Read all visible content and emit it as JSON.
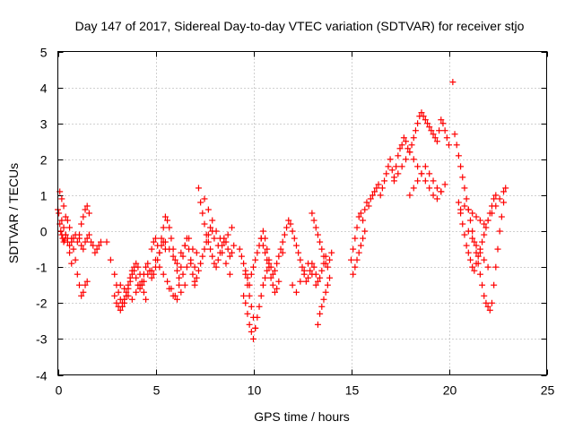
{
  "chart_data": {
    "type": "scatter",
    "title": "Day 147 of 2017, Sidereal Day-to-day VTEC variation (SDTVAR) for receiver stjo",
    "xlabel": "GPS time / hours",
    "ylabel": "SDTVAR / TECUs",
    "xlim": [
      0,
      25
    ],
    "ylim": [
      -4,
      5
    ],
    "x_ticks": [
      0,
      5,
      10,
      15,
      20,
      25
    ],
    "x_tick_labels": [
      "0",
      "5",
      "10",
      "15",
      "20",
      "25"
    ],
    "y_ticks": [
      -4,
      -3,
      -2,
      -1,
      0,
      1,
      2,
      3,
      4,
      5
    ],
    "y_tick_labels": [
      "-4",
      "-3",
      "-2",
      "-1",
      "0",
      "1",
      "2",
      "3",
      "4",
      "5"
    ],
    "grid": true,
    "marker": "+",
    "color": "#ff0000",
    "series": [
      {
        "name": "SDTVAR",
        "x": [
          0.0,
          0.05,
          0.1,
          0.15,
          0.2,
          0.25,
          0.3,
          0.35,
          0.4,
          0.5,
          0.6,
          0.7,
          0.8,
          0.9,
          1.0,
          1.1,
          1.2,
          1.3,
          1.4,
          1.5,
          1.6,
          1.7,
          1.8,
          1.9,
          2.0,
          2.1,
          2.2,
          2.5,
          2.7,
          0.1,
          0.2,
          0.3,
          0.4,
          0.5,
          0.6,
          0.7,
          0.8,
          0.9,
          1.0,
          1.1,
          1.2,
          1.3,
          1.4,
          1.5,
          0.2,
          0.3,
          0.4,
          0.5,
          0.6,
          0.7,
          1.1,
          1.2,
          1.3,
          1.4,
          1.5,
          1.6,
          2.9,
          3.0,
          3.1,
          3.2,
          3.3,
          3.4,
          3.5,
          3.6,
          3.7,
          3.8,
          3.9,
          4.0,
          4.1,
          4.2,
          4.3,
          4.4,
          4.5,
          4.6,
          4.7,
          4.8,
          4.9,
          5.0,
          5.1,
          5.2,
          5.3,
          5.4,
          5.5,
          2.9,
          3.0,
          3.1,
          3.2,
          3.3,
          3.4,
          3.5,
          3.6,
          3.7,
          3.8,
          3.9,
          4.0,
          4.1,
          4.2,
          4.3,
          4.4,
          4.5,
          3.2,
          3.4,
          3.6,
          3.8,
          4.0,
          4.2,
          4.4,
          4.6,
          4.8,
          4.8,
          4.9,
          5.0,
          5.1,
          5.2,
          5.3,
          5.4,
          5.5,
          5.6,
          5.7,
          5.8,
          5.9,
          6.0,
          6.1,
          6.2,
          6.3,
          6.4,
          6.5,
          6.6,
          6.7,
          6.8,
          6.9,
          7.0,
          5.0,
          5.2,
          5.4,
          5.6,
          5.8,
          6.0,
          6.2,
          6.4,
          6.6,
          6.8,
          5.5,
          5.7,
          5.9,
          6.1,
          6.3,
          6.5,
          6.7,
          6.9,
          5.7,
          5.9,
          6.1,
          6.3,
          6.5,
          7.0,
          7.1,
          7.2,
          7.3,
          7.4,
          7.5,
          7.6,
          7.7,
          7.8,
          7.9,
          8.0,
          8.1,
          8.2,
          8.3,
          8.4,
          8.5,
          8.6,
          8.7,
          8.8,
          8.9,
          9.0,
          7.0,
          7.1,
          7.2,
          7.3,
          7.4,
          7.5,
          7.6,
          7.7,
          7.8,
          7.9,
          8.0,
          8.2,
          8.4,
          8.6,
          8.8,
          7.5,
          7.7,
          7.9,
          8.1,
          8.3,
          8.5,
          8.7,
          8.9,
          9.3,
          9.4,
          9.5,
          9.6,
          9.7,
          9.8,
          9.9,
          10.0,
          10.1,
          10.2,
          10.3,
          10.4,
          10.5,
          10.6,
          10.7,
          10.8,
          10.9,
          11.0,
          11.1,
          11.2,
          11.3,
          11.4,
          11.5,
          9.5,
          9.6,
          9.7,
          9.8,
          9.9,
          10.0,
          10.1,
          10.2,
          10.3,
          10.4,
          10.5,
          10.6,
          10.7,
          10.8,
          9.6,
          9.7,
          9.8,
          9.9,
          10.0,
          10.1,
          10.4,
          10.5,
          10.6,
          10.7,
          10.8,
          10.9,
          11.0,
          11.1,
          11.2,
          11.3,
          11.5,
          11.6,
          11.7,
          11.8,
          11.9,
          12.0,
          12.1,
          12.2,
          12.3,
          12.4,
          12.5,
          12.6,
          12.7,
          12.8,
          12.9,
          13.0,
          13.1,
          13.2,
          13.3,
          13.4,
          13.5,
          13.6,
          13.7,
          12.0,
          12.2,
          12.4,
          12.6,
          12.8,
          13.0,
          13.2,
          13.0,
          13.1,
          13.2,
          13.3,
          13.4,
          13.5,
          13.6,
          13.7,
          13.8,
          13.9,
          14.0,
          13.3,
          13.4,
          13.5,
          13.6,
          13.7,
          13.8,
          13.9,
          15.0,
          15.1,
          15.2,
          15.3,
          15.4,
          15.5,
          15.6,
          15.7,
          15.8,
          15.9,
          16.0,
          16.1,
          16.2,
          16.3,
          16.4,
          16.5,
          16.6,
          16.7,
          16.8,
          16.9,
          17.0,
          17.1,
          17.2,
          17.3,
          17.4,
          17.5,
          17.6,
          17.7,
          17.8,
          17.9,
          18.0,
          18.1,
          18.2,
          18.3,
          18.4,
          18.5,
          18.6,
          18.7,
          18.8,
          18.9,
          19.0,
          19.1,
          19.2,
          19.3,
          19.4,
          19.5,
          19.6,
          19.7,
          19.8,
          19.9,
          20.0,
          15.1,
          15.2,
          15.3,
          15.4,
          15.5,
          15.6,
          15.7,
          17.2,
          17.4,
          17.6,
          17.8,
          18.0,
          18.2,
          18.4,
          18.6,
          18.8,
          19.0,
          19.2,
          19.4,
          19.6,
          19.8,
          18.0,
          18.2,
          18.4,
          18.6,
          18.8,
          19.0,
          19.2,
          19.4,
          19.6,
          20.2,
          20.3,
          20.4,
          20.5,
          20.6,
          20.7,
          20.8,
          20.9,
          21.0,
          21.1,
          21.2,
          21.3,
          21.4,
          21.5,
          21.6,
          21.7,
          21.8,
          21.9,
          22.0,
          22.1,
          22.2,
          22.3,
          22.4,
          22.5,
          22.6,
          22.7,
          22.8,
          22.9,
          20.5,
          20.6,
          20.7,
          20.8,
          20.9,
          21.0,
          21.1,
          21.2,
          21.3,
          21.4,
          21.5,
          21.6,
          21.7,
          21.8,
          21.9,
          22.0,
          22.1,
          22.2,
          22.3,
          22.4,
          20.6,
          20.8,
          21.0,
          21.2,
          21.4,
          21.6,
          21.8,
          22.0,
          22.2,
          22.4,
          22.6,
          22.8,
          21.0,
          21.2,
          21.4,
          21.6,
          21.8,
          22.0
        ],
        "y": [
          0.6,
          0.5,
          0.2,
          0.0,
          -0.1,
          -0.2,
          -0.3,
          -0.25,
          -0.1,
          -0.2,
          -0.4,
          -0.3,
          -0.2,
          -0.1,
          -0.3,
          -0.2,
          -0.4,
          -0.5,
          -0.3,
          -0.2,
          -0.1,
          -0.3,
          -0.4,
          -0.6,
          -0.5,
          -0.4,
          -0.3,
          -0.3,
          -0.8,
          1.1,
          0.9,
          0.7,
          0.4,
          0.3,
          0.1,
          -0.2,
          -0.5,
          -0.8,
          -1.2,
          -1.5,
          -1.8,
          -1.7,
          -1.5,
          -1.4,
          0.3,
          0.1,
          -0.1,
          -0.3,
          -0.6,
          -0.9,
          -0.1,
          0.2,
          0.4,
          0.6,
          0.7,
          0.5,
          -1.2,
          -1.5,
          -1.7,
          -1.9,
          -2.1,
          -2.0,
          -1.8,
          -1.6,
          -1.4,
          -1.2,
          -1.1,
          -1.3,
          -1.5,
          -1.6,
          -1.4,
          -1.2,
          -1.0,
          -0.9,
          -1.1,
          -1.3,
          -1.2,
          -1.0,
          -0.8,
          -0.6,
          -0.4,
          -0.3,
          -0.5,
          -1.8,
          -2.0,
          -2.1,
          -2.2,
          -2.0,
          -1.9,
          -1.7,
          -1.5,
          -1.3,
          -1.1,
          -1.0,
          -0.9,
          -1.0,
          -1.2,
          -1.5,
          -1.7,
          -1.9,
          -1.5,
          -1.6,
          -1.8,
          -1.9,
          -1.7,
          -1.5,
          -1.4,
          -1.2,
          -1.1,
          -0.5,
          -0.3,
          -0.2,
          -0.4,
          -0.6,
          -0.2,
          0.1,
          0.4,
          0.3,
          0.1,
          -0.2,
          -0.5,
          -0.8,
          -1.1,
          -1.3,
          -1.0,
          -0.7,
          -0.4,
          -0.2,
          -0.5,
          -0.9,
          -1.2,
          -1.4,
          -0.8,
          -1.0,
          -1.2,
          -1.4,
          -1.6,
          -1.8,
          -1.5,
          -1.2,
          -1.0,
          -0.8,
          -0.3,
          -0.5,
          -0.7,
          -0.9,
          -0.6,
          -0.4,
          -0.2,
          -0.5,
          -1.6,
          -1.8,
          -1.9,
          -1.7,
          -1.5,
          -1.0,
          -0.6,
          1.2,
          0.8,
          0.5,
          0.2,
          -0.1,
          -0.3,
          -0.5,
          -0.7,
          -0.9,
          -1.0,
          -0.8,
          -0.6,
          -0.4,
          -0.2,
          -0.3,
          -0.5,
          -0.7,
          -0.6,
          -0.4,
          -1.5,
          -1.3,
          -1.1,
          -0.9,
          -0.7,
          -0.5,
          -0.3,
          -0.1,
          0.1,
          0.0,
          -0.2,
          -0.4,
          -0.6,
          -0.9,
          -1.2,
          0.9,
          0.6,
          0.3,
          0.0,
          -0.2,
          -0.3,
          -0.1,
          0.1,
          -0.5,
          -0.7,
          -0.9,
          -1.1,
          -1.3,
          -1.5,
          -1.2,
          -1.0,
          -0.8,
          -0.6,
          -0.4,
          -0.2,
          0.0,
          -0.2,
          -0.5,
          -0.8,
          -1.0,
          -1.2,
          -1.1,
          -0.9,
          -0.7,
          -0.5,
          -0.6,
          -1.8,
          -2.0,
          -2.3,
          -2.6,
          -2.8,
          -3.0,
          -2.7,
          -2.4,
          -2.1,
          -1.8,
          -1.5,
          -1.3,
          -1.1,
          -0.9,
          -1.2,
          -1.5,
          -1.8,
          -2.1,
          -2.4,
          -2.7,
          -0.2,
          -0.4,
          -0.6,
          -0.8,
          -1.0,
          -1.3,
          -1.5,
          -1.7,
          -1.6,
          -1.4,
          -0.3,
          -0.1,
          0.1,
          0.3,
          0.2,
          0.0,
          -0.2,
          -0.4,
          -0.6,
          -0.8,
          -1.0,
          -1.2,
          -1.4,
          -1.3,
          -1.1,
          -0.9,
          -1.0,
          -1.2,
          -1.4,
          -1.3,
          -1.1,
          -0.9,
          -0.7,
          -1.5,
          -1.7,
          -1.4,
          -1.1,
          -0.9,
          -1.2,
          -1.5,
          0.5,
          0.3,
          0.1,
          -0.1,
          -0.3,
          -0.5,
          -0.7,
          -0.9,
          -1.0,
          -0.8,
          -0.6,
          -2.6,
          -2.3,
          -2.1,
          -1.9,
          -1.7,
          -1.5,
          -1.3,
          -0.8,
          -0.5,
          -0.2,
          0.1,
          0.4,
          0.5,
          0.3,
          0.6,
          0.8,
          0.7,
          0.9,
          1.0,
          1.1,
          1.2,
          1.3,
          1.0,
          1.2,
          1.4,
          1.6,
          1.8,
          2.0,
          1.7,
          1.5,
          1.8,
          2.1,
          2.3,
          2.4,
          2.6,
          2.5,
          2.3,
          2.2,
          2.4,
          2.6,
          2.8,
          3.0,
          3.2,
          3.3,
          3.2,
          3.1,
          3.0,
          2.9,
          2.8,
          2.7,
          2.6,
          2.5,
          2.8,
          3.1,
          3.0,
          2.8,
          2.6,
          2.4,
          -1.2,
          -1.0,
          -0.8,
          -0.6,
          -0.4,
          -0.2,
          0.0,
          1.4,
          1.6,
          1.8,
          2.0,
          2.2,
          2.0,
          1.8,
          1.6,
          1.4,
          1.2,
          1.0,
          0.9,
          1.1,
          1.3,
          1.0,
          1.2,
          1.4,
          1.6,
          1.8,
          1.6,
          1.4,
          1.2,
          1.1,
          4.15,
          2.7,
          2.4,
          2.1,
          1.8,
          1.5,
          1.2,
          0.9,
          0.6,
          0.3,
          0.0,
          -0.3,
          -0.6,
          -0.9,
          -1.2,
          -1.5,
          -1.8,
          -2.0,
          -2.1,
          -2.2,
          -2.0,
          -1.5,
          -1.0,
          -0.5,
          0.0,
          0.4,
          0.8,
          1.2,
          0.8,
          0.5,
          0.2,
          -0.1,
          -0.4,
          -0.6,
          -0.8,
          -1.0,
          -1.1,
          -0.9,
          -0.7,
          -0.5,
          -0.3,
          -0.1,
          0.1,
          0.3,
          0.5,
          0.7,
          0.9,
          1.0,
          0.6,
          0.7,
          0.6,
          0.5,
          0.4,
          0.3,
          0.2,
          0.3,
          0.5,
          0.7,
          0.9,
          1.1,
          0.0,
          -0.2,
          -0.4,
          -0.6,
          -0.8,
          -1.0
        ]
      }
    ]
  }
}
